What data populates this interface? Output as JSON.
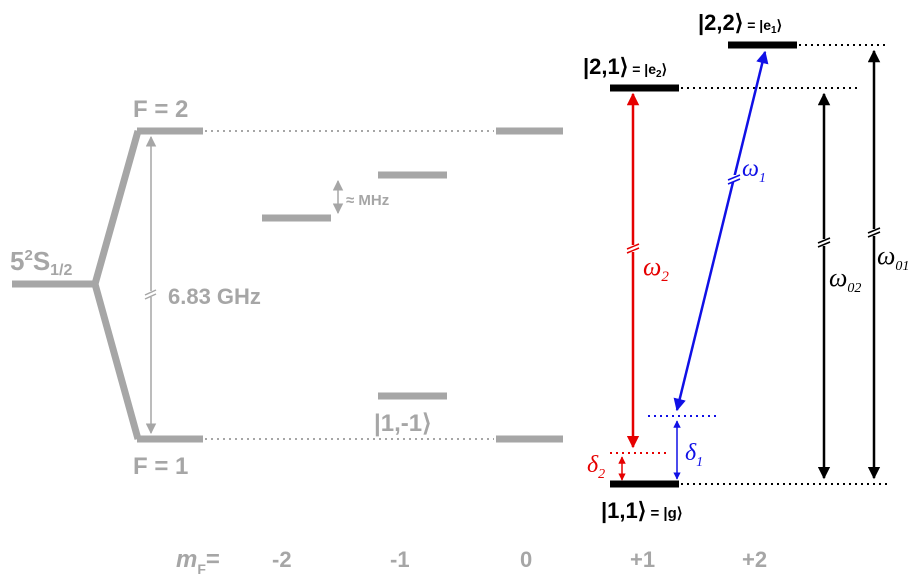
{
  "colors": {
    "grey": "#a6a6a6",
    "black": "#000000",
    "red": "#e60000",
    "blue": "#1010e6"
  },
  "left": {
    "ground_main": "5",
    "ground_sup": "2",
    "ground_S": "S",
    "ground_sub": "1/2",
    "f2": "F = 2",
    "f1": "F = 1",
    "hyperfine": "6.83 GHz",
    "zeeman": "≈ MHz",
    "state_1m1": "|1,-1⟩"
  },
  "mf": {
    "m": "m",
    "sub": "F",
    "eq": "=",
    "values": [
      "-2",
      "-1",
      "0",
      "+1",
      "+2"
    ]
  },
  "right": {
    "state_21": "|2,1⟩",
    "state_21_alias": " = |e",
    "state_21_alias_sub": "2",
    "state_21_alias_end": "⟩",
    "state_22": "|2,2⟩",
    "state_22_alias": " = |e",
    "state_22_alias_sub": "1",
    "state_22_alias_end": "⟩",
    "state_11": "|1,1⟩",
    "state_11_alias": " = |g⟩"
  },
  "symbols": {
    "omega": "ω",
    "omega1_sub": "1",
    "omega2_sub": "2",
    "omega01_sub": "01",
    "omega02_sub": "02",
    "delta": "δ",
    "delta1_sub": "1",
    "delta2_sub": "2"
  }
}
